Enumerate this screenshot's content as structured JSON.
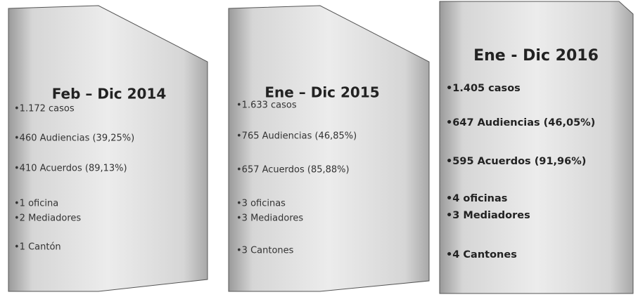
{
  "panels": [
    {
      "title": "Feb – Dic 2014",
      "items": [
        "•1.172 casos",
        "•460 Audiencias (39,25%)",
        "•410 Acuerdos (89,13%)",
        "•1 oficina",
        "•2 Mediadores",
        "•1 Cantón"
      ]
    },
    {
      "title": "Ene – Dic 2015",
      "items": [
        "•1.633 casos",
        "•765 Audiencias (46,85%)",
        "•657 Acuerdos (85,88%)",
        "•3 oficinas",
        "•3 Mediadores",
        "•3 Cantones"
      ]
    },
    {
      "title": "Ene - Dic 2016",
      "items": [
        "•1.405 casos",
        "•647 Audiencias (46,05%)",
        "•595 Acuerdos (91,96%)",
        "•4 oficinas",
        "•3 Mediadores",
        "•4 Cantones"
      ]
    }
  ]
}
